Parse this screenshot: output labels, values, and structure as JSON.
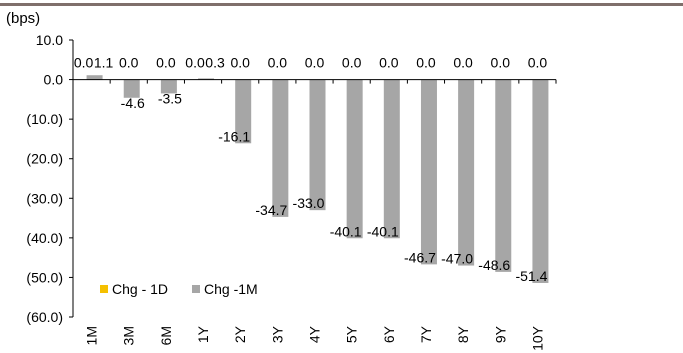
{
  "chart_data": {
    "type": "bar",
    "title": "",
    "ylabel": "(bps)",
    "xlabel": "",
    "ylim": [
      -60,
      10
    ],
    "yticks": [
      10,
      0,
      -10,
      -20,
      -30,
      -40,
      -50,
      -60
    ],
    "ytick_labels": [
      "10.0",
      "0.0",
      "(10.0)",
      "(20.0)",
      "(30.0)",
      "(40.0)",
      "(50.0)",
      "(60.0)"
    ],
    "categories": [
      "1M",
      "3M",
      "6M",
      "1Y",
      "2Y",
      "3Y",
      "4Y",
      "5Y",
      "6Y",
      "7Y",
      "8Y",
      "9Y",
      "10Y"
    ],
    "series": [
      {
        "name": "Chg - 1D",
        "color": "#f5c000",
        "values": [
          0.0,
          0.0,
          0.0,
          0.0,
          0.0,
          0.0,
          0.0,
          0.0,
          0.0,
          0.0,
          0.0,
          0.0,
          0.0
        ],
        "labels": [
          "0.0",
          "0.0",
          "0.0",
          "0.0",
          "0.0",
          "0.0",
          "0.0",
          "0.0",
          "0.0",
          "0.0",
          "0.0",
          "0.0",
          "0.0"
        ]
      },
      {
        "name": "Chg -1M",
        "color": "#a6a6a6",
        "values": [
          1.1,
          -4.6,
          -3.5,
          0.3,
          -16.1,
          -34.7,
          -33.0,
          -40.1,
          -40.1,
          -46.7,
          -47.0,
          -48.6,
          -51.4
        ],
        "labels": [
          "1.1",
          "-4.6",
          "-3.5",
          "0.3",
          "-16.1",
          "-34.7",
          "-33.0",
          "-40.1",
          "-40.1",
          "-46.7",
          "-47.0",
          "-48.6",
          "-51.4"
        ]
      }
    ],
    "legend_position": "bottom-left",
    "grid": false
  }
}
